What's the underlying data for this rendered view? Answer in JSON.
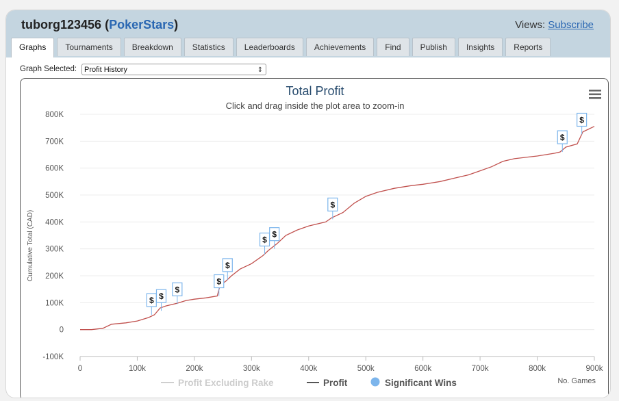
{
  "header": {
    "user": "tuborg123456",
    "site": "PokerStars",
    "views_label": "Views:",
    "views_link": "Subscribe"
  },
  "tabs": [
    {
      "label": "Graphs",
      "active": true
    },
    {
      "label": "Tournaments"
    },
    {
      "label": "Breakdown"
    },
    {
      "label": "Statistics"
    },
    {
      "label": "Leaderboards"
    },
    {
      "label": "Achievements"
    },
    {
      "label": "Find"
    },
    {
      "label": "Publish"
    },
    {
      "label": "Insights"
    },
    {
      "label": "Reports"
    }
  ],
  "graph_selector": {
    "label": "Graph Selected:",
    "value": "Profit History"
  },
  "menu_icon": "hamburger-menu-icon",
  "colors": {
    "profit_line": "#c0504d",
    "excl_rake_line": "#cfcfcf",
    "legend_profit": "#555555",
    "significant_wins": "#7cb5ec",
    "title": "#274b6d"
  },
  "chart_data": {
    "type": "line",
    "title": "Total Profit",
    "subtitle": "Click and drag inside the plot area to zoom-in",
    "xlabel": "No. Games",
    "ylabel": "Cumulative Total (CAD)",
    "xlim": [
      0,
      900000
    ],
    "ylim": [
      -100000,
      800000
    ],
    "x_ticks": [
      0,
      100000,
      200000,
      300000,
      400000,
      500000,
      600000,
      700000,
      800000,
      900000
    ],
    "x_tick_labels": [
      "0",
      "100k",
      "200k",
      "300k",
      "400k",
      "500k",
      "600k",
      "700k",
      "800k",
      "900k"
    ],
    "y_ticks": [
      -100000,
      0,
      100000,
      200000,
      300000,
      400000,
      500000,
      600000,
      700000,
      800000
    ],
    "y_tick_labels": [
      "-100K",
      "0",
      "100K",
      "200K",
      "300K",
      "400K",
      "500K",
      "600K",
      "700K",
      "800K"
    ],
    "legend": [
      "Profit Excluding Rake",
      "Profit",
      "Significant Wins"
    ],
    "legend_position": "bottom-center",
    "series": [
      {
        "name": "Profit",
        "x": [
          0,
          20000,
          40000,
          55000,
          80000,
          100000,
          120000,
          130000,
          140000,
          150000,
          170000,
          185000,
          200000,
          220000,
          240000,
          245000,
          255000,
          265000,
          280000,
          300000,
          320000,
          330000,
          345000,
          360000,
          380000,
          400000,
          430000,
          440000,
          460000,
          480000,
          500000,
          520000,
          550000,
          580000,
          600000,
          630000,
          660000,
          680000,
          700000,
          720000,
          740000,
          760000,
          780000,
          800000,
          830000,
          840000,
          850000,
          870000,
          880000,
          900000
        ],
        "y": [
          0,
          0,
          5000,
          20000,
          25000,
          32000,
          45000,
          55000,
          80000,
          88000,
          98000,
          108000,
          113000,
          118000,
          125000,
          165000,
          180000,
          200000,
          225000,
          245000,
          275000,
          295000,
          320000,
          350000,
          370000,
          385000,
          400000,
          415000,
          435000,
          470000,
          495000,
          510000,
          525000,
          535000,
          540000,
          550000,
          565000,
          575000,
          590000,
          605000,
          625000,
          635000,
          640000,
          645000,
          655000,
          660000,
          678000,
          690000,
          735000,
          755000
        ]
      }
    ],
    "significant_wins": [
      {
        "x": 125000,
        "y": 55000,
        "label": "$"
      },
      {
        "x": 142000,
        "y": 70000,
        "label": "$"
      },
      {
        "x": 170000,
        "y": 95000,
        "label": "$"
      },
      {
        "x": 243000,
        "y": 125000,
        "label": "$"
      },
      {
        "x": 258000,
        "y": 185000,
        "label": "$"
      },
      {
        "x": 323000,
        "y": 280000,
        "label": "$"
      },
      {
        "x": 340000,
        "y": 300000,
        "label": "$"
      },
      {
        "x": 442000,
        "y": 410000,
        "label": "$"
      },
      {
        "x": 844000,
        "y": 660000,
        "label": "$"
      },
      {
        "x": 878000,
        "y": 725000,
        "label": "$"
      }
    ]
  }
}
